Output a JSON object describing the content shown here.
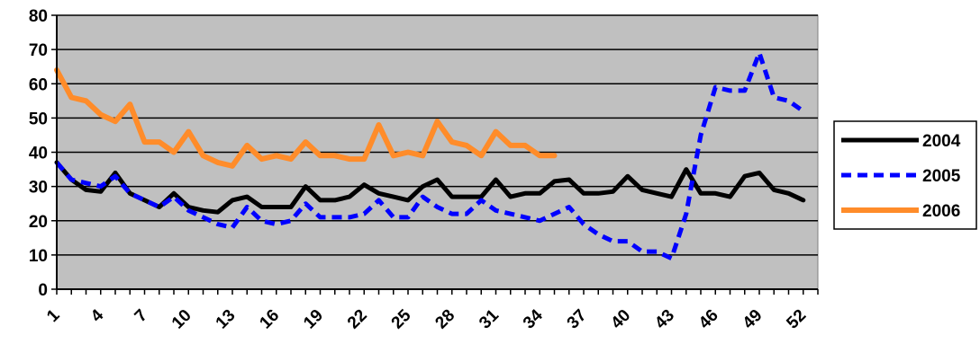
{
  "chart_data": {
    "type": "line",
    "title": "",
    "xlabel": "",
    "ylabel": "",
    "ylim": [
      0,
      80
    ],
    "y_ticks": [
      0,
      10,
      20,
      30,
      40,
      50,
      60,
      70,
      80
    ],
    "x_ticks": [
      1,
      4,
      7,
      10,
      13,
      16,
      19,
      22,
      25,
      28,
      31,
      34,
      37,
      40,
      43,
      46,
      49,
      52
    ],
    "x_tick_labels": [
      "1",
      "4",
      "7",
      "10",
      "13",
      "16",
      "19",
      "22",
      "25",
      "28",
      "31",
      "34",
      "37",
      "40",
      "43",
      "46",
      "49",
      "52"
    ],
    "grid": "horizontal",
    "legend_position": "right",
    "plot_background": "#c0c0c0",
    "x": [
      1,
      2,
      3,
      4,
      5,
      6,
      7,
      8,
      9,
      10,
      11,
      12,
      13,
      14,
      15,
      16,
      17,
      18,
      19,
      20,
      21,
      22,
      23,
      24,
      25,
      26,
      27,
      28,
      29,
      30,
      31,
      32,
      33,
      34,
      35,
      36,
      37,
      38,
      39,
      40,
      41,
      42,
      43,
      44,
      45,
      46,
      47,
      48,
      49,
      50,
      51,
      52,
      53
    ],
    "series": [
      {
        "name": "2004",
        "color": "#000000",
        "style": "solid",
        "values": [
          37,
          32,
          29,
          28.5,
          34,
          28,
          26,
          24,
          28,
          24,
          23,
          22.5,
          26,
          27,
          24,
          24,
          24,
          30,
          26,
          26,
          27,
          30.5,
          28,
          27,
          26,
          30,
          32,
          27,
          27,
          27,
          32,
          27,
          28,
          28,
          31.5,
          32,
          28,
          28,
          28.5,
          33,
          29,
          28,
          27,
          35,
          28,
          28,
          27,
          33,
          34,
          29,
          28,
          26,
          null
        ]
      },
      {
        "name": "2005",
        "color": "#0000ff",
        "style": "dashed",
        "values": [
          37,
          32,
          31,
          30,
          33,
          28,
          26,
          24,
          27,
          23,
          21,
          19,
          18,
          24,
          20,
          19,
          20,
          25,
          21,
          21,
          21,
          22,
          26,
          21,
          21,
          27,
          24,
          22,
          22,
          26,
          23,
          22,
          21,
          20,
          22,
          24,
          19,
          16,
          14,
          14,
          11,
          11,
          9,
          22,
          45,
          59,
          58,
          58,
          69,
          56,
          55,
          52,
          null
        ]
      },
      {
        "name": "2006",
        "color": "#ff8c2a",
        "style": "solid",
        "values": [
          64,
          56,
          55,
          51,
          49,
          54,
          43,
          43,
          40,
          46,
          39,
          37,
          36,
          42,
          38,
          39,
          38,
          43,
          39,
          39,
          38,
          38,
          48,
          39,
          40,
          39,
          49,
          43,
          42,
          39,
          46,
          42,
          42,
          39,
          39,
          null,
          null,
          null,
          null,
          null,
          null,
          null,
          null,
          null,
          null,
          null,
          null,
          null,
          null,
          null,
          null,
          null,
          null
        ]
      }
    ]
  }
}
